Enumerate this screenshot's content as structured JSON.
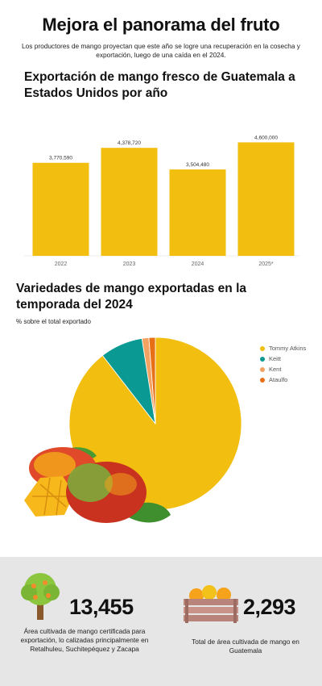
{
  "header": {
    "title": "Mejora el panorama del fruto",
    "subtitle": "Los productores de mango proyectan que este año se logre una recuperación en la cosecha y exportación, luego de una caída en el 2024."
  },
  "bar_chart": {
    "title": "Exportación de mango fresco de Guatemala a Estados Unidos por año"
  },
  "pie_chart": {
    "title": "Variedades de mango exportadas en la temporada del 2024",
    "subtitle": "% sobre el total exportado"
  },
  "chart_data": [
    {
      "type": "bar",
      "categories": [
        "2022",
        "2023",
        "2024",
        "2025*"
      ],
      "values": [
        3770590,
        4378720,
        3504480,
        4600000
      ],
      "value_labels": [
        "3,770,590",
        "4,378,720",
        "3,504,480",
        "4,600,000"
      ],
      "title": "Exportación de mango fresco de Guatemala a Estados Unidos por año",
      "xlabel": "",
      "ylabel": "",
      "ylim": [
        0,
        5300000
      ],
      "grid": false,
      "color": "#F2BE10"
    },
    {
      "type": "pie",
      "title": "Variedades de mango exportadas en la temporada del 2024",
      "subtitle": "% sobre el total exportado",
      "categories": [
        "Tommy Atkins",
        "Keitt",
        "Kent",
        "Ataulfo"
      ],
      "values": [
        89.5,
        8.0,
        1.3,
        1.2
      ],
      "colors": [
        "#F2BE10",
        "#0A9A93",
        "#F4A261",
        "#E76F16"
      ],
      "legend_position": "right"
    }
  ],
  "stats": [
    {
      "number": "13,455",
      "description": "Área cultivada de mango certificada para exportación, lo calizadas principalmente en Retalhuleu, Suchitepéquez y Zacapa",
      "icon": "tree-icon"
    },
    {
      "number": "2,293",
      "description": "Total de área cultivada de mango en Guatemala",
      "icon": "mango-crate-icon"
    }
  ],
  "colors": {
    "accent": "#F2BE10",
    "teal": "#0A9A93",
    "footer_bg": "#e6e6e6"
  }
}
